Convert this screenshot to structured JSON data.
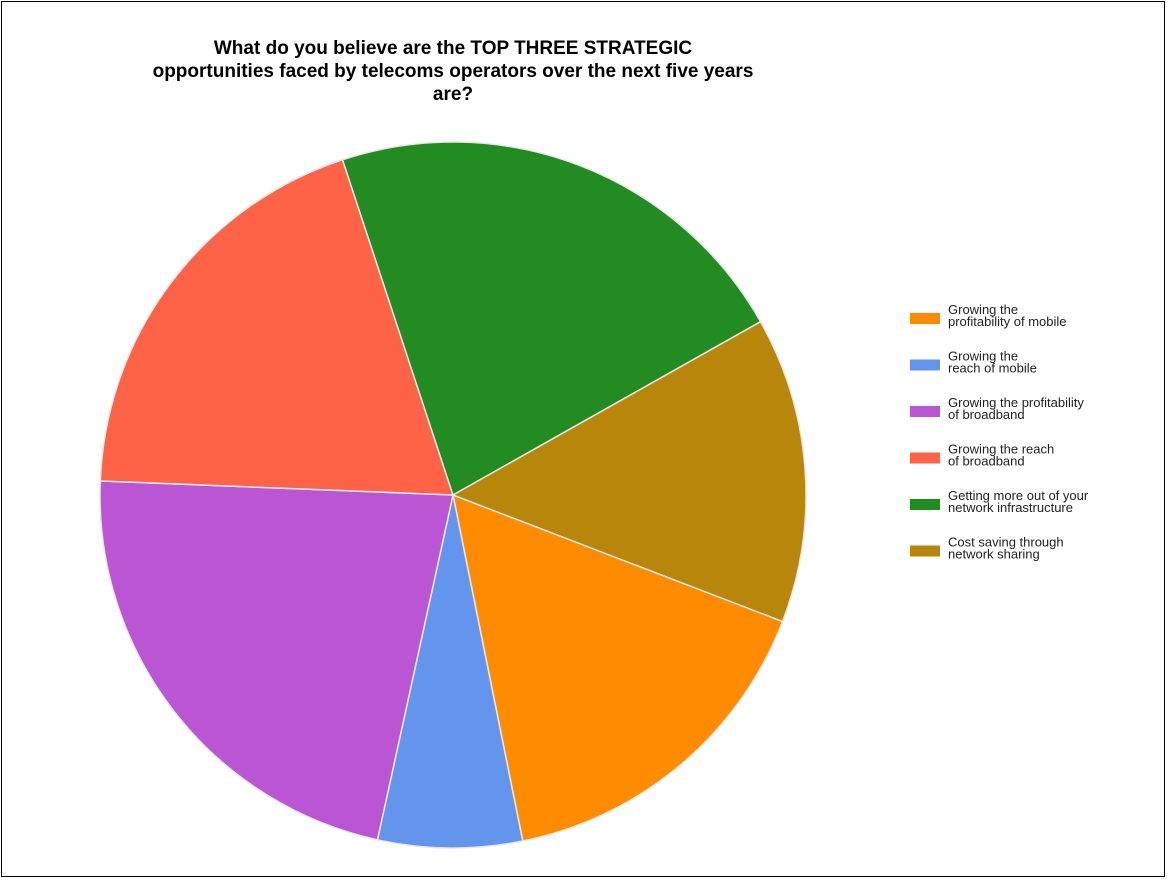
{
  "chart_data": {
    "type": "pie",
    "title_lines": [
      "What do you believe are the TOP THREE STRATEGIC",
      "opportunities faced by telecoms operators over the next five years",
      "are?"
    ],
    "slices": [
      {
        "label_lines": [
          "Growing the",
          "profitability of mobile"
        ],
        "value": 16.0,
        "color": "#ff8c00"
      },
      {
        "label_lines": [
          "Growing the",
          "reach of mobile"
        ],
        "value": 6.6,
        "color": "#6495ed"
      },
      {
        "label_lines": [
          "Growing the profitability",
          "of broadband"
        ],
        "value": 22.2,
        "color": "#ba55d3"
      },
      {
        "label_lines": [
          "Growing the reach",
          "of broadband"
        ],
        "value": 19.3,
        "color": "#ff6347"
      },
      {
        "label_lines": [
          "Getting more out of your",
          "network infrastructure"
        ],
        "value": 21.9,
        "color": "#228b22"
      },
      {
        "label_lines": [
          "Cost saving through",
          "network sharing"
        ],
        "value": 14.0,
        "color": "#b8860b"
      }
    ],
    "legend_position": "right",
    "slice_border_color": "#e8e8e8"
  }
}
